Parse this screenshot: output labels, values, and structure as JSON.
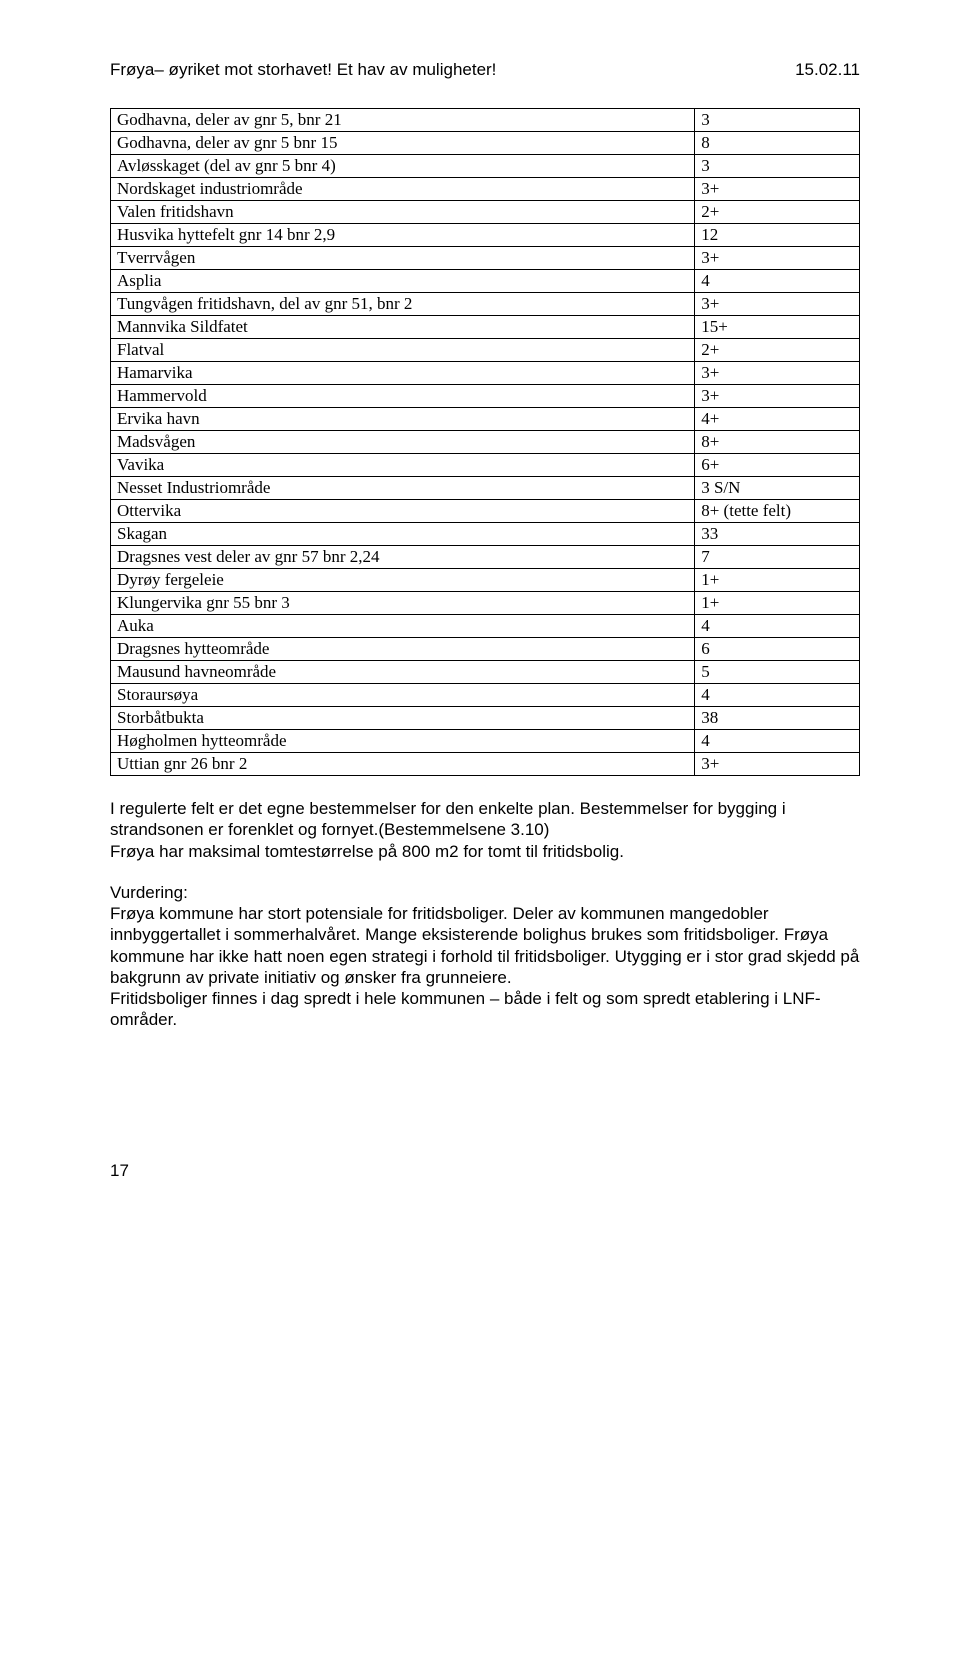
{
  "header": {
    "left": "Frøya– øyriket mot storhavet! Et hav av muligheter!",
    "right": "15.02.11"
  },
  "table": {
    "rows": [
      [
        "Godhavna, deler av gnr 5, bnr 21",
        "3"
      ],
      [
        "Godhavna, deler av gnr 5 bnr 15",
        "8"
      ],
      [
        "Avløsskaget (del av gnr 5 bnr 4)",
        "3"
      ],
      [
        "Nordskaget industriområde",
        "3+"
      ],
      [
        "Valen fritidshavn",
        "2+"
      ],
      [
        "Husvika hyttefelt gnr 14 bnr 2,9",
        "12"
      ],
      [
        "Tverrvågen",
        "3+"
      ],
      [
        "Asplia",
        "4"
      ],
      [
        "Tungvågen fritidshavn, del av gnr 51, bnr 2",
        "3+"
      ],
      [
        "Mannvika Sildfatet",
        "15+"
      ],
      [
        "Flatval",
        "2+"
      ],
      [
        "Hamarvika",
        "3+"
      ],
      [
        "Hammervold",
        "3+"
      ],
      [
        "Ervika havn",
        "4+"
      ],
      [
        "Madsvågen",
        "8+"
      ],
      [
        "Vavika",
        "6+"
      ],
      [
        "Nesset Industriområde",
        "3 S/N"
      ],
      [
        "Ottervika",
        "8+ (tette felt)"
      ],
      [
        "Skagan",
        "33"
      ],
      [
        "Dragsnes vest deler av gnr 57 bnr 2,24",
        "7"
      ],
      [
        "Dyrøy fergeleie",
        "1+"
      ],
      [
        "Klungervika gnr 55 bnr 3",
        "1+"
      ],
      [
        "Auka",
        "4"
      ],
      [
        "Dragsnes hytteområde",
        "6"
      ],
      [
        "Mausund havneområde",
        "5"
      ],
      [
        "Storaursøya",
        "4"
      ],
      [
        "Storbåtbukta",
        "38"
      ],
      [
        "Høgholmen hytteområde",
        "4"
      ],
      [
        "Uttian gnr 26 bnr 2",
        "3+"
      ]
    ]
  },
  "paragraphs": {
    "p1": "I regulerte felt er det egne bestemmelser for den enkelte plan. Bestemmelser for bygging i strandsonen er forenklet og fornyet.(Bestemmelsene 3.10)\nFrøya har maksimal tomtestørrelse på 800 m2 for tomt til fritidsbolig.",
    "p2": "Vurdering:\nFrøya kommune har stort potensiale for fritidsboliger. Deler av kommunen mangedobler innbyggertallet i sommerhalvåret. Mange eksisterende bolighus brukes som fritidsboliger. Frøya kommune har ikke hatt noen egen strategi i forhold til fritidsboliger. Utygging er i stor grad skjedd på bakgrunn av private initiativ og ønsker fra grunneiere.\nFritidsboliger finnes i dag spredt i hele kommunen – både i felt og som spredt etablering i LNF-områder."
  },
  "page_number": "17"
}
